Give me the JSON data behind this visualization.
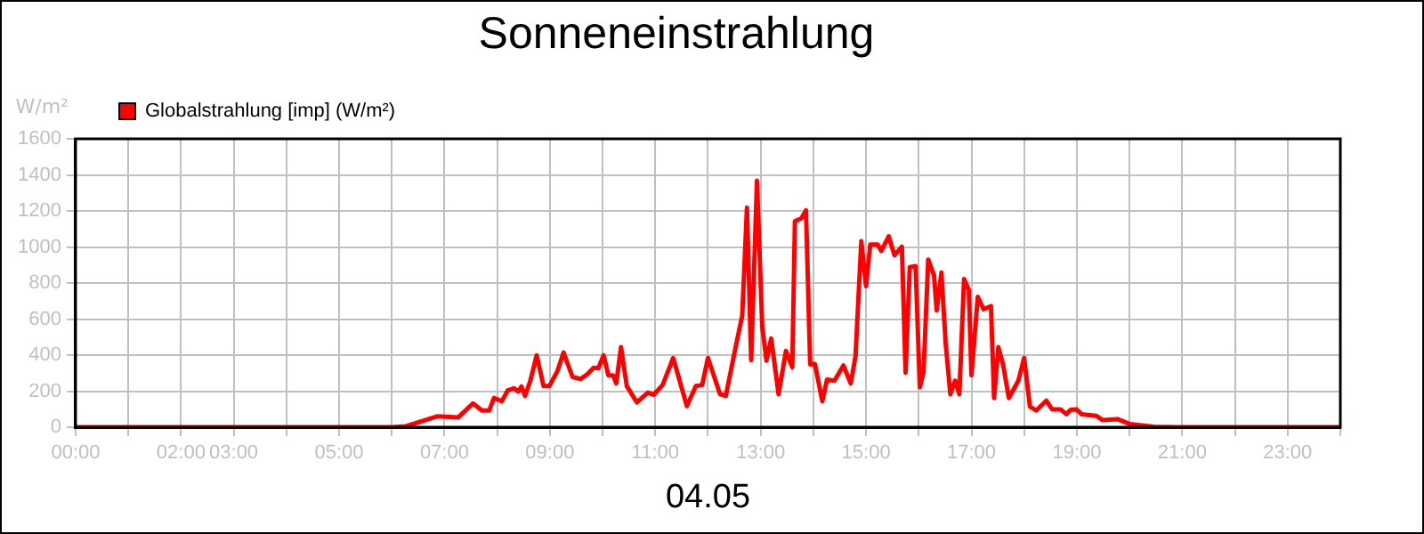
{
  "chart_data": {
    "type": "line",
    "title": "Sonneneinstrahlung",
    "xlabel": "04.05",
    "ylabel": "W/m²",
    "x": [
      0,
      6.0,
      6.27,
      6.86,
      7.26,
      7.54,
      7.71,
      7.85,
      7.94,
      8.09,
      8.2,
      8.32,
      8.4,
      8.46,
      8.53,
      8.63,
      8.75,
      8.88,
      8.99,
      9.14,
      9.26,
      9.43,
      9.58,
      9.71,
      9.83,
      9.92,
      10.02,
      10.11,
      10.2,
      10.26,
      10.35,
      10.46,
      10.65,
      10.86,
      10.97,
      11.14,
      11.34,
      11.6,
      11.77,
      11.89,
      12.0,
      12.23,
      12.34,
      12.51,
      12.65,
      12.74,
      12.82,
      12.93,
      13.03,
      13.11,
      13.2,
      13.34,
      13.48,
      13.6,
      13.65,
      13.77,
      13.86,
      13.94,
      14.03,
      14.17,
      14.26,
      14.4,
      14.57,
      14.71,
      14.8,
      14.91,
      15.0,
      15.08,
      15.22,
      15.29,
      15.43,
      15.54,
      15.68,
      15.75,
      15.83,
      15.94,
      16.02,
      16.09,
      16.18,
      16.29,
      16.34,
      16.43,
      16.51,
      16.6,
      16.69,
      16.77,
      16.86,
      16.95,
      17.0,
      17.12,
      17.23,
      17.37,
      17.43,
      17.51,
      17.6,
      17.71,
      17.89,
      18.0,
      18.11,
      18.23,
      18.42,
      18.53,
      18.69,
      18.8,
      18.88,
      18.99,
      19.09,
      19.37,
      19.49,
      19.77,
      20.0,
      20.46,
      20.91,
      24
    ],
    "series": [
      {
        "name": "Globalstrahlung [imp] (W/m²)",
        "color": "#ff0000",
        "values": [
          0,
          0,
          5,
          60,
          54,
          132,
          93,
          93,
          162,
          144,
          204,
          216,
          198,
          225,
          174,
          258,
          399,
          228,
          228,
          309,
          414,
          279,
          267,
          294,
          330,
          327,
          399,
          288,
          288,
          243,
          444,
          228,
          138,
          192,
          180,
          234,
          384,
          117,
          228,
          234,
          384,
          183,
          174,
          423,
          618,
          1218,
          372,
          1368,
          558,
          369,
          492,
          183,
          423,
          333,
          1143,
          1158,
          1203,
          348,
          351,
          144,
          264,
          258,
          342,
          243,
          393,
          1032,
          783,
          1014,
          1014,
          978,
          1059,
          954,
          1002,
          303,
          888,
          894,
          222,
          303,
          930,
          843,
          648,
          858,
          468,
          183,
          258,
          183,
          822,
          762,
          288,
          723,
          654,
          672,
          162,
          444,
          348,
          162,
          258,
          384,
          114,
          93,
          147,
          99,
          99,
          72,
          96,
          99,
          72,
          63,
          39,
          45,
          18,
          3,
          0,
          0
        ]
      }
    ],
    "xlim": [
      0,
      24
    ],
    "xticks": [
      {
        "value": 0,
        "label": "00:00"
      },
      {
        "value": 1,
        "label": null
      },
      {
        "value": 2,
        "label": "02:00"
      },
      {
        "value": 3,
        "label": "03:00"
      },
      {
        "value": 4,
        "label": null
      },
      {
        "value": 5,
        "label": "05:00"
      },
      {
        "value": 6,
        "label": null
      },
      {
        "value": 7,
        "label": "07:00"
      },
      {
        "value": 8,
        "label": null
      },
      {
        "value": 9,
        "label": "09:00"
      },
      {
        "value": 10,
        "label": null
      },
      {
        "value": 11,
        "label": "11:00"
      },
      {
        "value": 12,
        "label": null
      },
      {
        "value": 13,
        "label": "13:00"
      },
      {
        "value": 14,
        "label": null
      },
      {
        "value": 15,
        "label": "15:00"
      },
      {
        "value": 16,
        "label": null
      },
      {
        "value": 17,
        "label": "17:00"
      },
      {
        "value": 18,
        "label": null
      },
      {
        "value": 19,
        "label": "19:00"
      },
      {
        "value": 20,
        "label": null
      },
      {
        "value": 21,
        "label": "21:00"
      },
      {
        "value": 22,
        "label": null
      },
      {
        "value": 23,
        "label": "23:00"
      },
      {
        "value": 24,
        "label": null
      }
    ],
    "ylim": [
      0,
      1600
    ],
    "yticks": [
      0,
      200,
      400,
      600,
      800,
      1000,
      1200,
      1400,
      1600
    ],
    "grid": true,
    "legend": "top left",
    "marker": "none",
    "line_style": "solid"
  }
}
